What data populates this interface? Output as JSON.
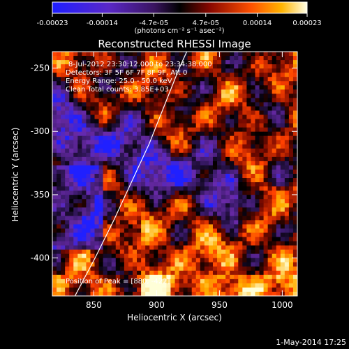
{
  "colorbar": {
    "tick_labels": [
      "-0.00023",
      "-0.00014",
      "-4.7e-05",
      "4.7e-05",
      "0.00014",
      "0.00023"
    ],
    "tick_values": [
      -0.00023,
      -0.00014,
      -4.7e-05,
      4.7e-05,
      0.00014,
      0.00023
    ],
    "range": [
      -0.00023,
      0.00023
    ],
    "units": "(photons cm⁻² s⁻¹ asec⁻²)"
  },
  "plot": {
    "title": "Reconstructed RHESSI Image",
    "annotations": [
      "8-Jul-2012 23:30:12.000 to 23:34:38.000",
      "Detectors: 3F 5F 6F 7F 8F 9F, Att 0",
      "Energy Range: 25.0 - 50.0 keV",
      "Clean    Total counts: 3.85E+03"
    ],
    "peak_label": "Position of Peak = [880, -422]"
  },
  "footer": {
    "date": "1-May-2014 17:25"
  },
  "chart_data": {
    "type": "heatmap",
    "title": "Reconstructed RHESSI Image",
    "xlabel": "Heliocentric X (arcsec)",
    "ylabel": "Heliocentric Y (arcsec)",
    "xlim": [
      817,
      1012
    ],
    "ylim": [
      -430,
      -237
    ],
    "x_ticks": [
      850,
      900,
      950,
      1000
    ],
    "y_ticks": [
      -250,
      -300,
      -350,
      -400
    ],
    "x_tick_labels": [
      "850",
      "900",
      "950",
      "1000"
    ],
    "y_tick_labels": [
      "-250",
      "-300",
      "-350",
      "-400"
    ],
    "limb_line": {
      "x": [
        835,
        851,
        866,
        880,
        894,
        906,
        918,
        930,
        942
      ],
      "y": [
        -430,
        -400,
        -370,
        -340,
        -310,
        -280,
        -250,
        -224,
        -197
      ]
    },
    "peak": {
      "x": 880,
      "y": -422
    },
    "colormap": [
      "#2020ff",
      "#6a2aa8",
      "#3a1a6a",
      "#000000",
      "#7a0a00",
      "#ff4000",
      "#ffb000",
      "#ffffd8"
    ]
  }
}
